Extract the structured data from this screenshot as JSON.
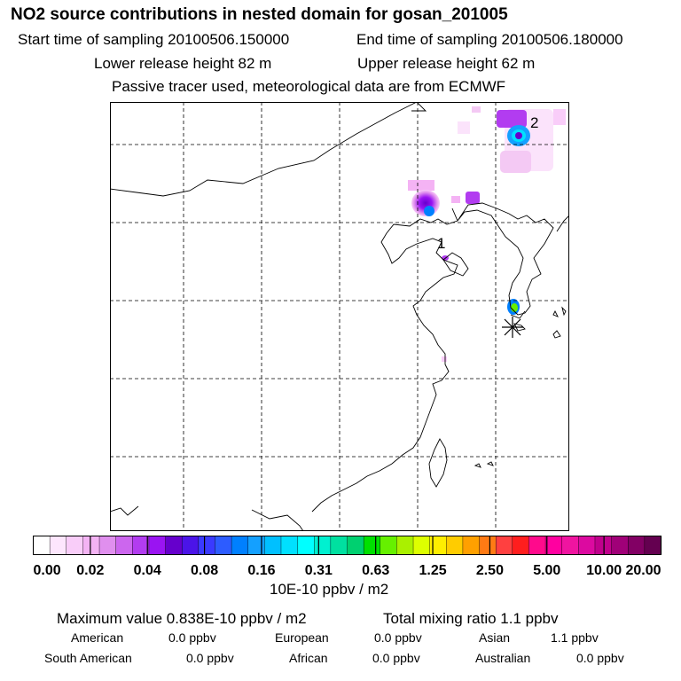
{
  "header": {
    "title": "NO2 source contributions in nested domain for gosan_201005",
    "start_time": "Start time of sampling 20100506.150000",
    "end_time": "End time of sampling 20100506.180000",
    "lower_release": "Lower release height   82 m",
    "upper_release": "Upper release height   62 m",
    "tracer_note": "Passive tracer used, meteorological data are from ECMWF"
  },
  "map": {
    "markers": [
      {
        "label": "1"
      },
      {
        "label": "2"
      }
    ],
    "receptor_symbol": "asterisk"
  },
  "colorbar": {
    "colors": [
      "#ffffff",
      "#fde6fd",
      "#f9cdf9",
      "#f4b3f4",
      "#e08fee",
      "#cc66ee",
      "#b23cf0",
      "#9a14f2",
      "#6600cc",
      "#4b14e8",
      "#3a3aff",
      "#2d5cff",
      "#0080ff",
      "#14a0ff",
      "#00c0ff",
      "#00e0ff",
      "#00ffff",
      "#00f0d0",
      "#00e0a0",
      "#00d070",
      "#00e000",
      "#66f000",
      "#aaf000",
      "#ddff00",
      "#ffee00",
      "#ffcc00",
      "#ffa000",
      "#ff7a14",
      "#ff4040",
      "#ff1e1e",
      "#ff0a8c",
      "#ff00a0",
      "#f014a0",
      "#dc0aa0",
      "#c0008c",
      "#a00078",
      "#820064",
      "#640050"
    ],
    "ticks": [
      "0.00",
      "0.02",
      "0.04",
      "0.08",
      "0.16",
      "0.31",
      "0.63",
      "1.25",
      "2.50",
      "5.00",
      "10.00",
      "20.00"
    ],
    "units": "10E-10 ppbv / m2"
  },
  "footer": {
    "max_value": "Maximum value  0.838E-10 ppbv / m2",
    "total_label": "Total mixing ratio       1.1 ppbv",
    "regions": [
      {
        "name": "American",
        "value": "0.0 ppbv"
      },
      {
        "name": "European",
        "value": "0.0 ppbv"
      },
      {
        "name": "Asian",
        "value": "1.1 ppbv"
      },
      {
        "name": "South American",
        "value": "0.0 ppbv"
      },
      {
        "name": "African",
        "value": "0.0 ppbv"
      },
      {
        "name": "Australian",
        "value": "0.0 ppbv"
      }
    ]
  }
}
